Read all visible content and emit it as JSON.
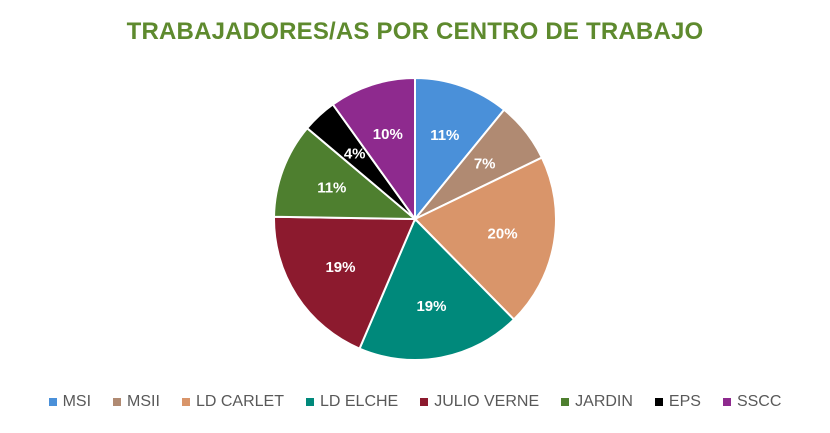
{
  "chart_data": {
    "type": "pie",
    "title": "TRABAJADORES/AS POR CENTRO DE TRABAJO",
    "legend_position": "bottom",
    "slices": [
      {
        "name": "MSI",
        "value": 11,
        "label": "11%",
        "color": "#4A90D9",
        "label_color": "#FFFFFF"
      },
      {
        "name": "MSII",
        "value": 7,
        "label": "7%",
        "color": "#B08A72",
        "label_color": "#FFFFFF"
      },
      {
        "name": "LD CARLET",
        "value": 20,
        "label": "20%",
        "color": "#D9956A",
        "label_color": "#FFFFFF"
      },
      {
        "name": "LD ELCHE",
        "value": 19,
        "label": "19%",
        "color": "#00897B",
        "label_color": "#FFFFFF"
      },
      {
        "name": "JULIO VERNE",
        "value": 19,
        "label": "19%",
        "color": "#8C1A2E",
        "label_color": "#FFFFFF"
      },
      {
        "name": "JARDIN",
        "value": 11,
        "label": "11%",
        "color": "#4E7F2F",
        "label_color": "#FFFFFF"
      },
      {
        "name": "EPS",
        "value": 4,
        "label": "4%",
        "color": "#000000",
        "label_color": "#FFFFFF"
      },
      {
        "name": "SSCC",
        "value": 10,
        "label": "10%",
        "color": "#8E2A8E",
        "label_color": "#FFFFFF"
      }
    ]
  }
}
